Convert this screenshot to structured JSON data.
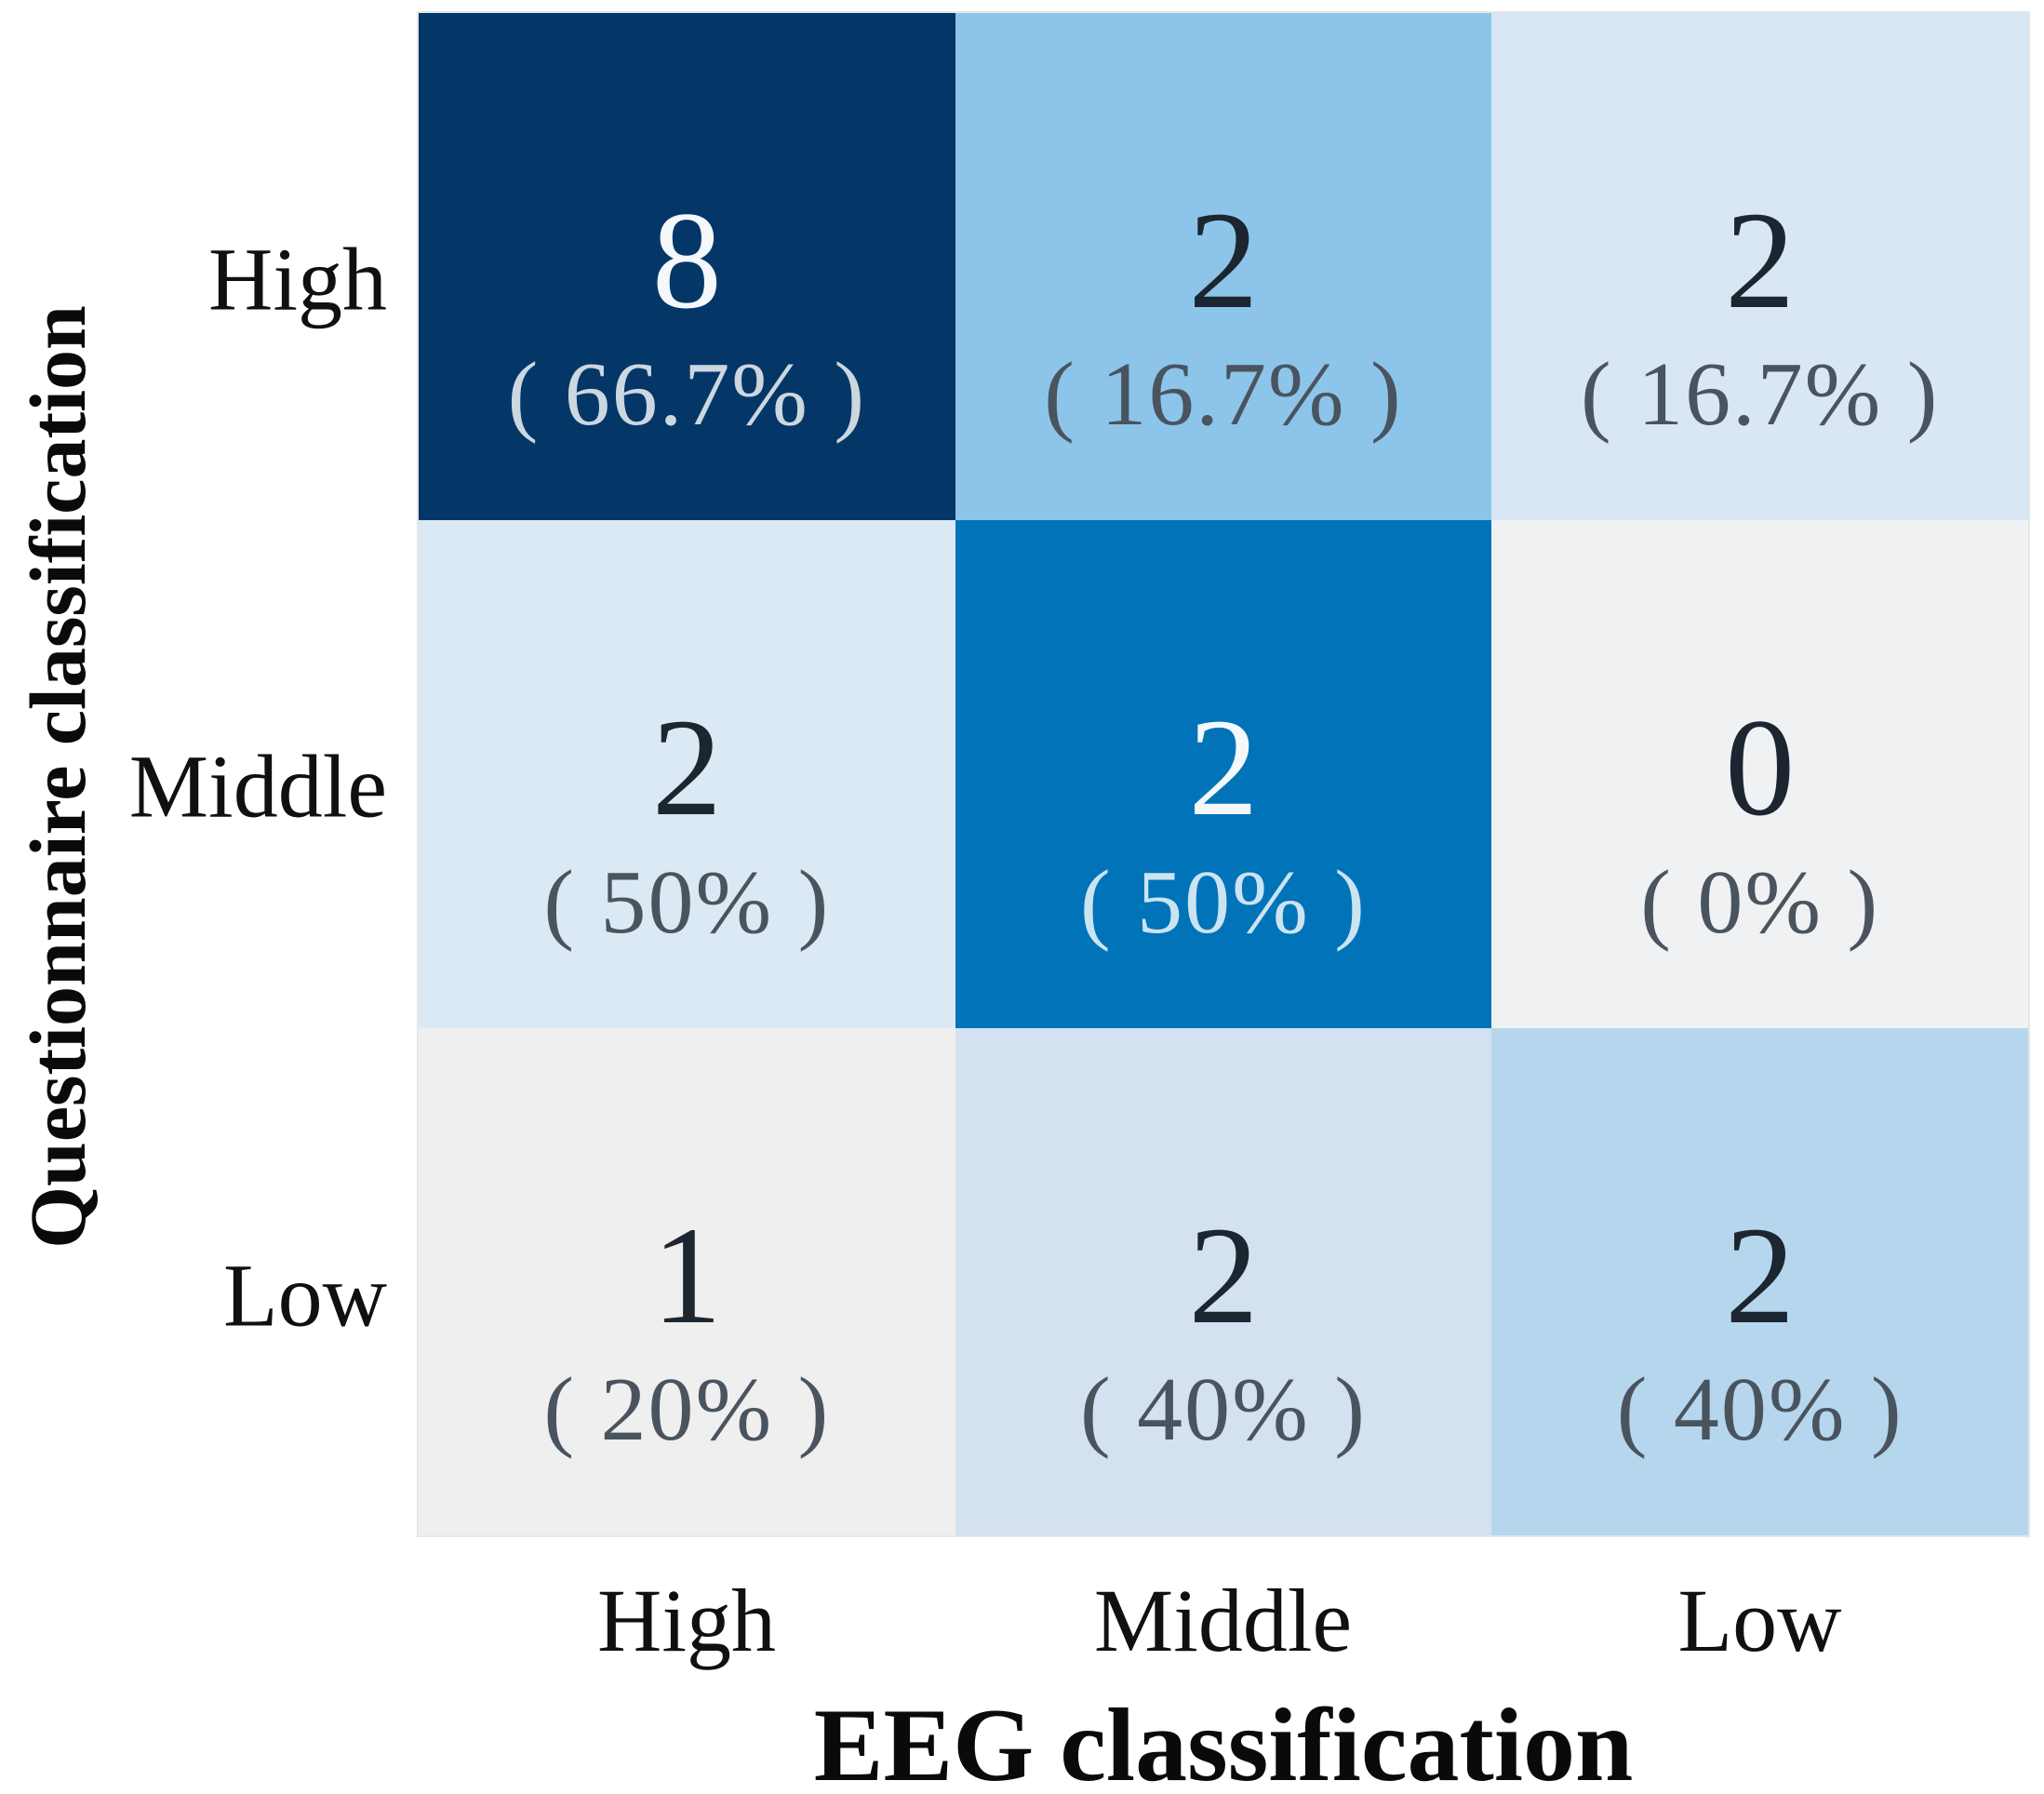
{
  "figure": {
    "kind": "confusion-matrix-heatmap",
    "background": "#ffffff",
    "grid_outline_color": "#e4e7ea"
  },
  "chart_data": {
    "type": "heatmap",
    "title": "",
    "xlabel": "EEG classification",
    "ylabel": "Questionnaire classification",
    "x_categories": [
      "High",
      "Middle",
      "Low"
    ],
    "y_categories": [
      "High",
      "Middle",
      "Low"
    ],
    "legend": "none",
    "value_format": "count over (percent)",
    "cells": [
      [
        {
          "row": "High",
          "col": "High",
          "count": 8,
          "percent": 66.7,
          "percent_label": "( 66.7% )",
          "bg": "#043767",
          "text_theme": "light"
        },
        {
          "row": "High",
          "col": "Middle",
          "count": 2,
          "percent": 16.7,
          "percent_label": "( 16.7% )",
          "bg": "#8cc5e9",
          "text_theme": "dark"
        },
        {
          "row": "High",
          "col": "Low",
          "count": 2,
          "percent": 16.7,
          "percent_label": "( 16.7% )",
          "bg": "#d9e7f4",
          "text_theme": "dark"
        }
      ],
      [
        {
          "row": "Middle",
          "col": "High",
          "count": 2,
          "percent": 50,
          "percent_label": "( 50% )",
          "bg": "#dbe9f5",
          "text_theme": "dark"
        },
        {
          "row": "Middle",
          "col": "Middle",
          "count": 2,
          "percent": 50,
          "percent_label": "( 50% )",
          "bg": "#0173b8",
          "text_theme": "light"
        },
        {
          "row": "Middle",
          "col": "Low",
          "count": 0,
          "percent": 0,
          "percent_label": "( 0% )",
          "bg": "#f0f1f3",
          "text_theme": "dark"
        }
      ],
      [
        {
          "row": "Low",
          "col": "High",
          "count": 1,
          "percent": 20,
          "percent_label": "( 20% )",
          "bg": "#efeff0",
          "text_theme": "dark"
        },
        {
          "row": "Low",
          "col": "Middle",
          "count": 2,
          "percent": 40,
          "percent_label": "( 40% )",
          "bg": "#d3e1f1",
          "text_theme": "dark"
        },
        {
          "row": "Low",
          "col": "Low",
          "count": 2,
          "percent": 40,
          "percent_label": "( 40% )",
          "bg": "#b6d6ed",
          "text_theme": "dark"
        }
      ]
    ]
  }
}
